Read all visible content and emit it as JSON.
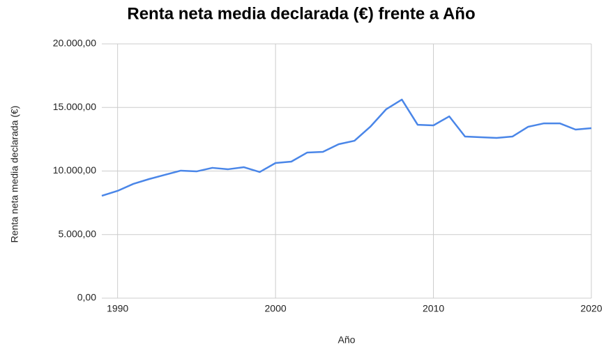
{
  "chart_data": {
    "type": "line",
    "title": "Renta neta media declarada (€) frente a Año",
    "x_label": "Año",
    "y_label": "Renta neta media declarada (€)",
    "x": [
      1989,
      1990,
      1991,
      1992,
      1993,
      1994,
      1995,
      1996,
      1997,
      1998,
      1999,
      2000,
      2001,
      2002,
      2003,
      2004,
      2005,
      2006,
      2007,
      2008,
      2009,
      2010,
      2011,
      2012,
      2013,
      2014,
      2015,
      2016,
      2017,
      2018,
      2019,
      2020
    ],
    "series": [
      {
        "name": "Renta neta media declarada (€)",
        "color": "#4a86e8",
        "values": [
          8050,
          8440,
          8990,
          9370,
          9700,
          10030,
          9970,
          10250,
          10140,
          10300,
          9920,
          10630,
          10740,
          11450,
          11510,
          12110,
          12380,
          13480,
          14850,
          15620,
          13640,
          13590,
          14300,
          12710,
          12660,
          12600,
          12710,
          13480,
          13750,
          13750,
          13260,
          13370
        ]
      }
    ],
    "xlim": [
      1989,
      2020
    ],
    "xticks": [
      1990,
      2000,
      2010,
      2020
    ],
    "ylim": [
      0,
      20000
    ],
    "yticks": [
      {
        "value": 0,
        "label": "0,00"
      },
      {
        "value": 5000,
        "label": "5.000,00"
      },
      {
        "value": 10000,
        "label": "10.000,00"
      },
      {
        "value": 15000,
        "label": "15.000,00"
      },
      {
        "value": 20000,
        "label": "20.000,00"
      }
    ],
    "grid": true
  }
}
